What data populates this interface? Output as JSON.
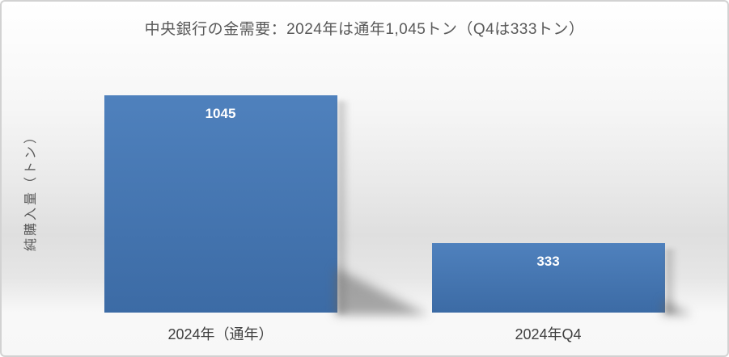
{
  "chart": {
    "title": "中央銀行の金需要：2024年は通年1,045トン（Q4は333トン）"
  },
  "chart_data": {
    "type": "bar",
    "title": "中央銀行の金需要：2024年は通年1,045トン（Q4は333トン）",
    "categories": [
      "2024年（通年）",
      "2024年Q4"
    ],
    "values": [
      1045,
      333
    ],
    "data_labels": [
      "1045",
      "333"
    ],
    "xlabel": "",
    "ylabel": "純購入量（トン）",
    "ylim": [
      0,
      1100
    ],
    "grid": false,
    "legend": false,
    "axis_ticks_visible": false,
    "data_label_position": "inside-top",
    "colors": {
      "bar_top": "#4F81BD",
      "bar_bottom": "#3C6BA5",
      "data_label": "#FFFFFF",
      "title_text": "#595959",
      "axis_text": "#3F3F3F"
    }
  }
}
